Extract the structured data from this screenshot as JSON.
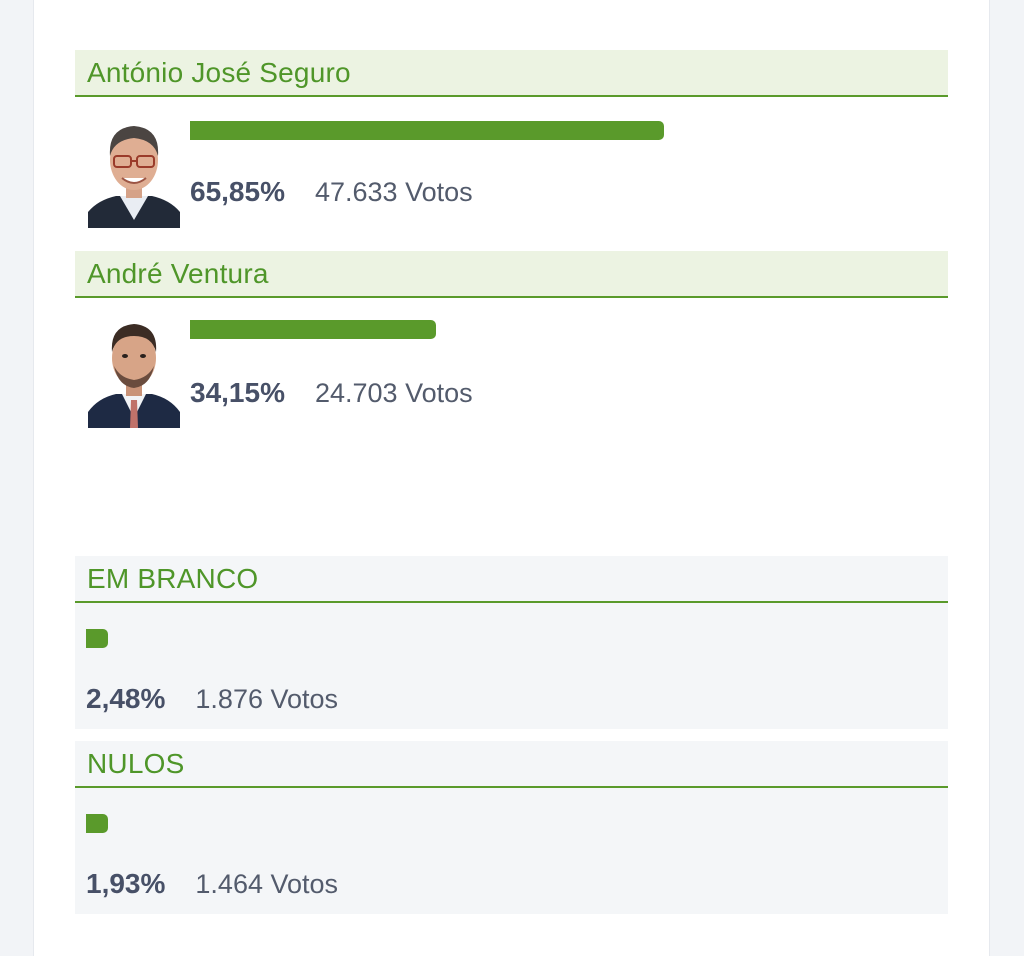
{
  "candidates": [
    {
      "name": "António José Seguro",
      "percentage": "65,85%",
      "percentage_value": 65.85,
      "votes": "47.633",
      "votes_label": "Votos"
    },
    {
      "name": "André Ventura",
      "percentage": "34,15%",
      "percentage_value": 34.15,
      "votes": "24.703",
      "votes_label": "Votos"
    }
  ],
  "special": [
    {
      "name": "EM BRANCO",
      "percentage": "2,48%",
      "percentage_value": 2.48,
      "votes": "1.876",
      "votes_label": "Votos"
    },
    {
      "name": "NULOS",
      "percentage": "1,93%",
      "percentage_value": 1.93,
      "votes": "1.464",
      "votes_label": "Votos"
    }
  ],
  "colors": {
    "accent": "#5a9a2b",
    "header_bg": "#ecf3e2",
    "special_bg": "#f4f6f8",
    "text_dark": "#475067"
  }
}
